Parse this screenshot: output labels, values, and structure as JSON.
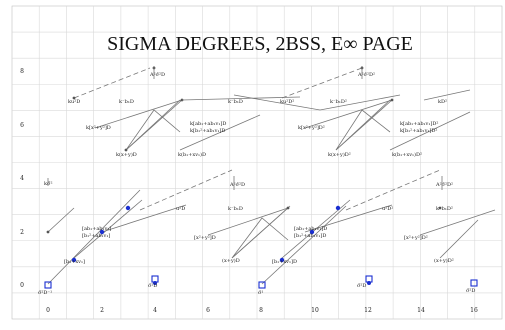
{
  "title": "SIGMA DEGREES, 2BSS, E∞ PAGE",
  "x_ticks": [
    "0",
    "2",
    "4",
    "6",
    "8",
    "10",
    "12",
    "14",
    "16"
  ],
  "y_ticks": [
    "0",
    "2",
    "4",
    "6",
    "8"
  ],
  "colors": {
    "highlight": "#1a2fd0",
    "line": "#777777",
    "grid": "#d9d9d9"
  },
  "labels": {
    "k_sigma": "kσ̄²",
    "ktop_a": "A²σ̄²D",
    "ktop_b": "A²σ̄²D²",
    "ku2d": "ku²D",
    "kb1d": "k⁻b₁D",
    "kxy2d": "k[x²+y²]D",
    "kb1d_b": "k⁻b₁D",
    "kabs": "k[ab₁+ab₁v₁]D",
    "kb12": "k[b₁²+ab₁v₁]D",
    "kxyd": "k(x+y)D",
    "kb1vd": "k(b₁+xv₁)D",
    "ku2d2": "ku²D²",
    "kb1d2": "k⁻b₁D²",
    "kxy2d2": "k[x²+y²]D²",
    "kabs2": "k[ab₁+ab₁v₁]D²",
    "kb122": "k[b₁²+ab₁v₁]D²",
    "kxyd2": "k(x+y)D²",
    "kb1vd2": "k(b₁+xv₁)D²",
    "kd_r": "kD²",
    "kb1d2_r": "k⁻b₁D²",
    "ksig4": "kσ̄²",
    "ab1_low": "[ab₁+ab₁v₁]",
    "b12_low": "[b₁²+ab₁v₁]",
    "b1v_low": "[b₁+xv₁]",
    "u2d": "u²D",
    "a2d": "A²σ̄²D",
    "xy2d": "[x²+y²]D",
    "xyd": "(x+y)D",
    "ab1d": "[ab₁+ab₁v₁]D",
    "b12d": "[b₁²+ab₁v₁]D",
    "b1vd": "[b₁+xv₁]D",
    "u2d2": "u²D²",
    "a2d2": "A²σ̄²D²",
    "xy2d2": "[x²+y²]D²",
    "xyd2": "(x+y)D²",
    "b0": "σ̄²D⁻¹",
    "b4": "σ̄²D",
    "b8": "σ̄¹",
    "b12": "σ̄²D",
    "b16": "σ̄²D"
  }
}
